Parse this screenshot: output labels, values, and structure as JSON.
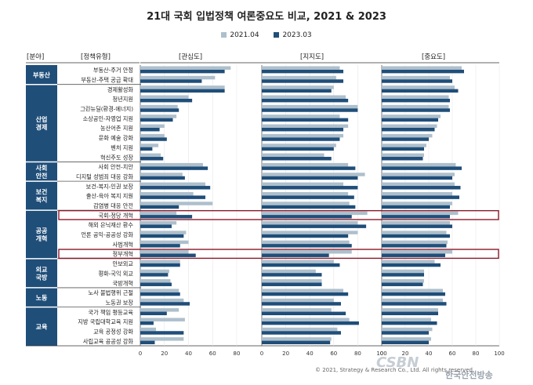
{
  "title": "21대 국회 입법정책 여론중요도 비교, 2021 & 2023",
  "legend": [
    {
      "label": "2021.04",
      "color": "#aebfcc"
    },
    {
      "label": "2023.03",
      "color": "#1f4e79"
    }
  ],
  "headers": {
    "field": "[분야]",
    "policy": "[정책유형]",
    "interest": "[관심도]",
    "support": "[지지도]",
    "importance": "[중요도]"
  },
  "footer": "© 2021, Strategy & Research Co., Ltd. All rights reserved.",
  "watermark": {
    "logo": "CSBN",
    "name": "한국안전방송"
  },
  "chart_data": {
    "type": "bar",
    "orientation": "horizontal",
    "series": [
      {
        "name": "2021.04",
        "color": "#aebfcc"
      },
      {
        "name": "2023.03",
        "color": "#1f4e79"
      }
    ],
    "groups": [
      {
        "label": "부동산",
        "items": [
          "부동산-주거 안정",
          "부동산-주택 공급 확대"
        ]
      },
      {
        "label": "산업\n경제",
        "items": [
          "경제활성화",
          "청년지원",
          "그린뉴딜(환경-에너지)",
          "소상공인-자영업 지원",
          "농산어촌 지원",
          "문화 예술 강화",
          "벤처 지원",
          "혁신주도 성장"
        ]
      },
      {
        "label": "사회\n안전",
        "items": [
          "사회 안전-치안",
          "디지털 성범죄 대응 강화"
        ]
      },
      {
        "label": "보건\n복지",
        "items": [
          "보건-복지-인권 보장",
          "출산-육아 복지 지원",
          "감염병 대응 안전"
        ]
      },
      {
        "label": "공공\n개혁",
        "items": [
          "국회-정당 개혁",
          "해외 은닉재산 환수",
          "언론 공익-공공성 강화",
          "사법개혁",
          "정부개혁"
        ]
      },
      {
        "label": "외교\n국방",
        "items": [
          "안보외교",
          "평화-국익 외교",
          "국방개혁"
        ]
      },
      {
        "label": "노동",
        "items": [
          "노사 불법행위 근절",
          "노동권 보장"
        ]
      },
      {
        "label": "교육",
        "items": [
          "국가 책임 평등교육",
          "지방 국립대학교육 지원",
          "교육 공정성 강화",
          "사립교육 공공성 강화"
        ]
      }
    ],
    "highlighted": [
      "국회-정당 개혁",
      "정부개혁"
    ],
    "panels": [
      {
        "label": "[관심도]",
        "xlim": [
          0,
          80
        ],
        "ticks": [
          0,
          20,
          40,
          60,
          80
        ],
        "v2021": [
          75,
          62,
          70,
          40,
          31,
          30,
          20,
          20,
          15,
          17,
          52,
          35,
          54,
          44,
          60,
          30,
          30,
          38,
          40,
          40,
          33,
          24,
          25,
          32,
          36,
          32,
          37,
          13,
          36,
          11
        ],
        "v2023": [
          70,
          51,
          70,
          43,
          32,
          27,
          16,
          22,
          10,
          19,
          56,
          37,
          58,
          54,
          32,
          43,
          26,
          36,
          33,
          46,
          33,
          23,
          26,
          33,
          41,
          22,
          11,
          36,
          12,
          12
        ]
      },
      {
        "label": "[지지도]",
        "xlim": [
          0,
          100
        ],
        "ticks": [
          0,
          20,
          40,
          60,
          80,
          100
        ],
        "v2021": [
          65,
          62,
          60,
          70,
          80,
          65,
          72,
          68,
          62,
          52,
          72,
          86,
          68,
          72,
          73,
          88,
          80,
          80,
          73,
          75,
          60,
          45,
          50,
          68,
          60,
          58,
          73,
          63,
          58,
          58
        ],
        "v2023": [
          68,
          68,
          58,
          72,
          80,
          72,
          68,
          65,
          60,
          58,
          78,
          80,
          80,
          77,
          78,
          75,
          87,
          72,
          75,
          56,
          65,
          50,
          50,
          72,
          66,
          70,
          81,
          66,
          57,
          62
        ]
      },
      {
        "label": "[중요도]",
        "xlim": [
          0,
          100
        ],
        "ticks": [
          0,
          20,
          40,
          60,
          80,
          100
        ],
        "v2021": [
          68,
          58,
          62,
          57,
          57,
          50,
          47,
          43,
          38,
          36,
          63,
          62,
          62,
          60,
          60,
          65,
          58,
          55,
          56,
          60,
          45,
          36,
          36,
          52,
          52,
          48,
          42,
          43,
          42,
          38
        ],
        "v2023": [
          70,
          60,
          65,
          58,
          58,
          48,
          45,
          40,
          36,
          35,
          68,
          60,
          67,
          66,
          58,
          58,
          60,
          58,
          55,
          54,
          50,
          36,
          35,
          54,
          55,
          48,
          47,
          40,
          40,
          37
        ]
      }
    ]
  }
}
